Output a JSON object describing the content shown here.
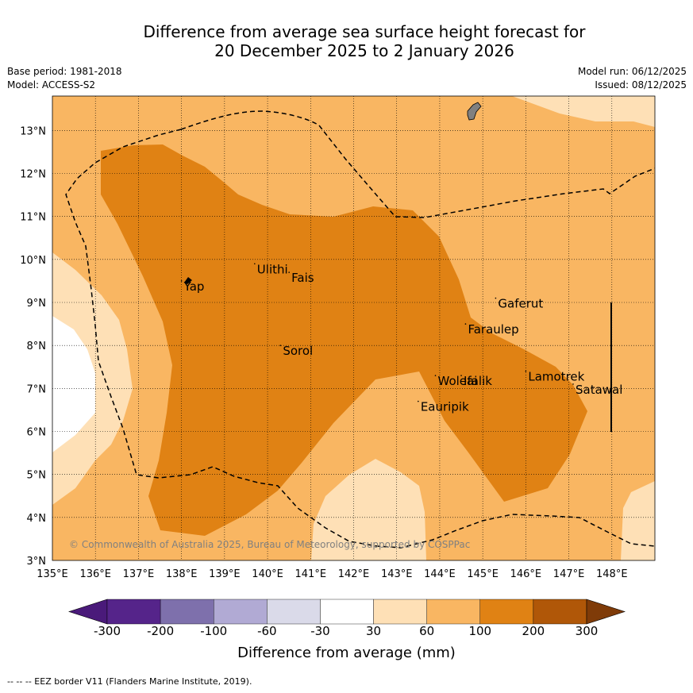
{
  "title_line1": "Difference from average sea surface height forecast for",
  "title_line2": "20 December 2025 to 2 January 2026",
  "meta": {
    "base_period": "Base period: 1981-2018",
    "model": "Model: ACCESS-S2",
    "model_run": "Model run: 06/12/2025",
    "issued": "Issued: 08/12/2025"
  },
  "map": {
    "lon_range": [
      135,
      149
    ],
    "lat_range": [
      3,
      13.8
    ],
    "x_ticks": [
      "135°E",
      "136°E",
      "137°E",
      "138°E",
      "139°E",
      "140°E",
      "141°E",
      "142°E",
      "143°E",
      "144°E",
      "145°E",
      "146°E",
      "147°E",
      "148°E"
    ],
    "y_ticks": [
      "3°N",
      "4°N",
      "5°N",
      "6°N",
      "7°N",
      "8°N",
      "9°N",
      "10°N",
      "11°N",
      "12°N",
      "13°N"
    ],
    "places": [
      {
        "name": "Yap",
        "lon": 138.0,
        "lat": 9.5
      },
      {
        "name": "Ulithi",
        "lon": 139.7,
        "lat": 9.9
      },
      {
        "name": "Fais",
        "lon": 140.5,
        "lat": 9.7
      },
      {
        "name": "Gaferut",
        "lon": 145.3,
        "lat": 9.1
      },
      {
        "name": "Faraulep",
        "lon": 144.6,
        "lat": 8.5
      },
      {
        "name": "Sorol",
        "lon": 140.3,
        "lat": 8.0
      },
      {
        "name": "Lamotrek",
        "lon": 146.0,
        "lat": 7.4
      },
      {
        "name": "Woleai",
        "lon": 143.9,
        "lat": 7.3
      },
      {
        "name": "Ifalik",
        "lon": 144.5,
        "lat": 7.3
      },
      {
        "name": "Satawal",
        "lon": 147.1,
        "lat": 7.1
      },
      {
        "name": "Eauripik",
        "lon": 143.5,
        "lat": 6.7
      }
    ],
    "copyright": "© Commonwealth of Australia 2025, Bureau of Meteorology, supported by COSPPac"
  },
  "colorbar": {
    "ticks": [
      "-300",
      "-200",
      "-100",
      "-60",
      "-30",
      "30",
      "60",
      "100",
      "200",
      "300"
    ],
    "colors": [
      "#4a1a7a",
      "#55248a",
      "#7e70ac",
      "#b1aad4",
      "#dadae9",
      "#ffffff",
      "#fee0b6",
      "#f9b662",
      "#e08214",
      "#b05708",
      "#7f3b08"
    ],
    "title": "Difference from average (mm)"
  },
  "legend_note": "-- -- -- EEZ border V11 (Flanders Marine Institute, 2019)."
}
